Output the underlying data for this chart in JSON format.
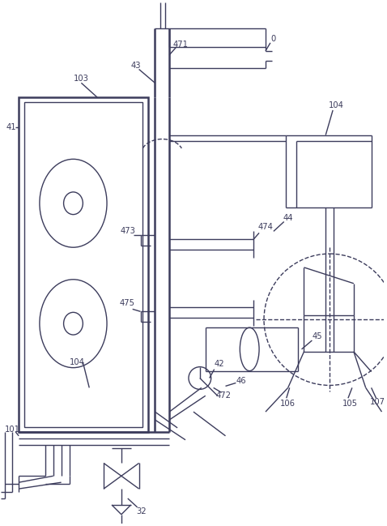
{
  "bg": "#ffffff",
  "lc": "#3c3c5c",
  "figsize": [
    4.78,
    6.49
  ],
  "dpi": 100
}
